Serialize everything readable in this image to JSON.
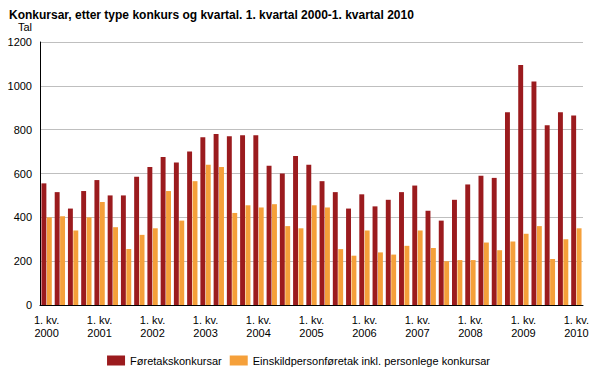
{
  "chart_data": {
    "type": "bar",
    "title": "Konkursar, etter type konkurs og kvartal. 1. kvartal 2000-1. kvartal 2010",
    "y_label": "Tal",
    "categories": [
      "1. kv.\n2000",
      null,
      null,
      null,
      "1. kv.\n2001",
      null,
      null,
      null,
      "1. kv.\n2002",
      null,
      null,
      null,
      "1. kv.\n2003",
      null,
      null,
      null,
      "1. kv.\n2004",
      null,
      null,
      null,
      "1. kv.\n2005",
      null,
      null,
      null,
      "1. kv.\n2006",
      null,
      null,
      null,
      "1. kv.\n2007",
      null,
      null,
      null,
      "1. kv.\n2008",
      null,
      null,
      null,
      "1. kv.\n2009",
      null,
      null,
      null,
      "1. kv.\n2010"
    ],
    "series": [
      {
        "name": "Føretakskonkursar",
        "color": "#9b1b1e",
        "values": [
          555,
          515,
          440,
          520,
          570,
          500,
          500,
          585,
          630,
          675,
          650,
          700,
          765,
          780,
          770,
          775,
          775,
          635,
          600,
          680,
          640,
          565,
          515,
          440,
          505,
          450,
          480,
          515,
          545,
          430,
          385,
          480,
          550,
          590,
          580,
          880,
          1095,
          1020,
          820,
          880,
          865
        ]
      },
      {
        "name": "Einskildpersonføretak inkl. personlege konkursar",
        "color": "#f5a03a",
        "values": [
          400,
          405,
          340,
          400,
          470,
          355,
          255,
          320,
          350,
          520,
          385,
          565,
          640,
          630,
          420,
          455,
          445,
          460,
          360,
          350,
          455,
          445,
          255,
          225,
          340,
          240,
          230,
          270,
          340,
          260,
          200,
          205,
          205,
          285,
          250,
          290,
          325,
          360,
          210,
          300,
          350
        ]
      }
    ],
    "ylim": [
      0,
      1200
    ],
    "yticks": [
      0,
      200,
      400,
      600,
      800,
      1000,
      1200
    ],
    "grid": true,
    "legend": "bottom"
  }
}
